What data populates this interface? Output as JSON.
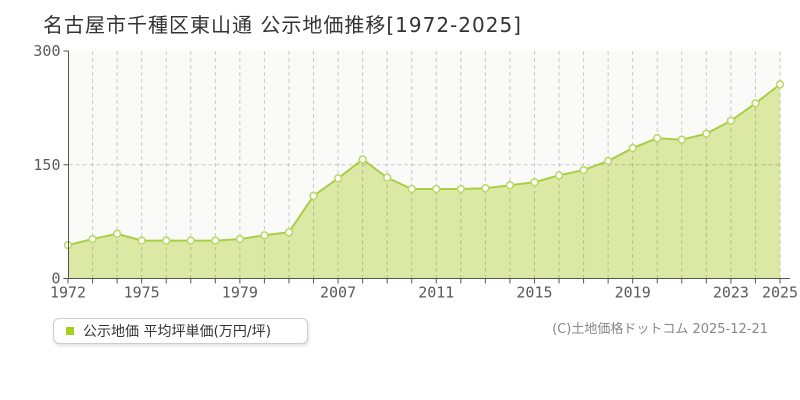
{
  "title": "名古屋市千種区東山通 公示地価推移[1972-2025]",
  "legend": {
    "marker_color": "#a3d31c",
    "label": "公示地価 平均坪単価(万円/坪)"
  },
  "copyright": "(C)土地価格ドットコム 2025-12-21",
  "chart_data": {
    "type": "area",
    "title": "名古屋市千種区東山通 公示地価推移[1972-2025]",
    "series_name": "公示地価 平均坪単価(万円/坪)",
    "ylabel": "万円/坪",
    "ylim": [
      0,
      300
    ],
    "y_ticks": [
      0,
      150,
      300
    ],
    "grid": true,
    "legend_position": "bottom-left",
    "x": [
      1972,
      1973,
      1974,
      1975,
      1976,
      1977,
      1978,
      1979,
      1980,
      1981,
      2006,
      2007,
      2008,
      2009,
      2010,
      2011,
      2012,
      2013,
      2014,
      2015,
      2016,
      2017,
      2018,
      2019,
      2020,
      2021,
      2022,
      2023,
      2024,
      2025
    ],
    "values": [
      44,
      52,
      59,
      50,
      50,
      50,
      50,
      52,
      57,
      61,
      109,
      132,
      157,
      133,
      118,
      118,
      118,
      119,
      123,
      127,
      136,
      143,
      155,
      172,
      185,
      183,
      191,
      208,
      231,
      256
    ],
    "x_tick_labels": [
      "1972",
      "1975",
      "1979",
      "2007",
      "2011",
      "2015",
      "2019",
      "2023",
      "2025"
    ],
    "x_tick_indices": [
      0,
      3,
      7,
      11,
      15,
      19,
      23,
      27,
      29
    ],
    "colors": {
      "plot_background": "#fafaf8",
      "area_fill": "#d9e79c",
      "line": "#a8ce48",
      "point_fill": "#ffffff",
      "point_stroke": "#bcd968",
      "grid": "#6f6f6f",
      "axis": "#555555",
      "tick_label": "#5a5a5a"
    }
  }
}
